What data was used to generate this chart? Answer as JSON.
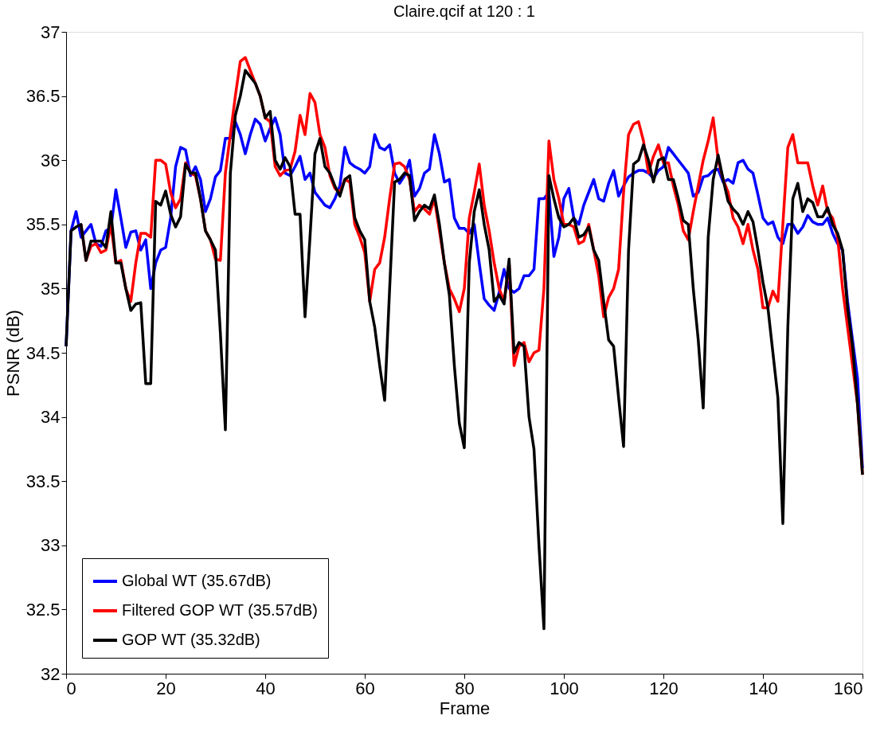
{
  "chart_data": {
    "type": "line",
    "title": "Claire.qcif at 120 : 1",
    "xlabel": "Frame",
    "ylabel": "PSNR (dB)",
    "x": [
      0,
      1,
      2,
      3,
      4,
      5,
      6,
      7,
      8,
      9,
      10,
      11,
      12,
      13,
      14,
      15,
      16,
      17,
      18,
      19,
      20,
      21,
      22,
      23,
      24,
      25,
      26,
      27,
      28,
      29,
      30,
      31,
      32,
      33,
      34,
      35,
      36,
      37,
      38,
      39,
      40,
      41,
      42,
      43,
      44,
      45,
      46,
      47,
      48,
      49,
      50,
      51,
      52,
      53,
      54,
      55,
      56,
      57,
      58,
      59,
      60,
      61,
      62,
      63,
      64,
      65,
      66,
      67,
      68,
      69,
      70,
      71,
      72,
      73,
      74,
      75,
      76,
      77,
      78,
      79,
      80,
      81,
      82,
      83,
      84,
      85,
      86,
      87,
      88,
      89,
      90,
      91,
      92,
      93,
      94,
      95,
      96,
      97,
      98,
      99,
      100,
      101,
      102,
      103,
      104,
      105,
      106,
      107,
      108,
      109,
      110,
      111,
      112,
      113,
      114,
      115,
      116,
      117,
      118,
      119,
      120,
      121,
      122,
      123,
      124,
      125,
      126,
      127,
      128,
      129,
      130,
      131,
      132,
      133,
      134,
      135,
      136,
      137,
      138,
      139,
      140,
      141,
      142,
      143,
      144,
      145,
      146,
      147,
      148,
      149,
      150,
      151,
      152,
      153,
      154,
      155,
      156,
      157,
      158,
      159,
      160
    ],
    "series": [
      {
        "name": "Global WT (35.67dB)",
        "color": "#0000ff",
        "values": [
          34.55,
          35.45,
          35.6,
          35.4,
          35.45,
          35.5,
          35.35,
          35.33,
          35.45,
          35.47,
          35.77,
          35.55,
          35.32,
          35.44,
          35.45,
          35.3,
          35.38,
          35.0,
          35.2,
          35.3,
          35.32,
          35.55,
          35.95,
          36.1,
          36.08,
          35.88,
          35.95,
          35.85,
          35.6,
          35.7,
          35.87,
          35.92,
          36.17,
          36.17,
          36.3,
          36.2,
          36.05,
          36.2,
          36.32,
          36.28,
          36.15,
          36.25,
          36.33,
          36.2,
          35.9,
          35.88,
          35.95,
          36.03,
          35.85,
          35.9,
          35.75,
          35.7,
          35.65,
          35.63,
          35.7,
          35.8,
          36.1,
          35.98,
          35.95,
          35.93,
          35.9,
          35.95,
          36.2,
          36.1,
          36.08,
          36.12,
          35.9,
          35.82,
          35.88,
          36.0,
          35.72,
          35.78,
          35.9,
          35.93,
          36.2,
          36.05,
          35.83,
          35.85,
          35.55,
          35.47,
          35.47,
          35.43,
          35.5,
          35.2,
          34.92,
          34.87,
          34.83,
          34.97,
          35.15,
          35.0,
          34.97,
          35.0,
          35.1,
          35.1,
          35.15,
          35.7,
          35.7,
          35.75,
          35.25,
          35.4,
          35.7,
          35.78,
          35.55,
          35.5,
          35.65,
          35.75,
          35.85,
          35.7,
          35.68,
          35.82,
          35.92,
          35.72,
          35.8,
          35.87,
          35.9,
          35.92,
          35.92,
          35.9,
          35.86,
          35.92,
          35.95,
          36.1,
          36.05,
          36.0,
          35.95,
          35.9,
          35.72,
          35.75,
          35.87,
          35.88,
          35.92,
          35.93,
          35.83,
          35.85,
          35.82,
          35.98,
          36.0,
          35.93,
          35.9,
          35.73,
          35.55,
          35.5,
          35.52,
          35.4,
          35.35,
          35.5,
          35.5,
          35.43,
          35.48,
          35.57,
          35.52,
          35.5,
          35.5,
          35.55,
          35.43,
          35.35,
          35.3,
          34.9,
          34.6,
          34.3,
          33.6
        ]
      },
      {
        "name": "Filtered GOP WT (35.57dB)",
        "color": "#ff0000",
        "values": [
          null,
          null,
          null,
          35.5,
          35.22,
          35.33,
          35.35,
          35.28,
          35.3,
          35.5,
          35.2,
          35.22,
          35.0,
          34.9,
          35.2,
          35.43,
          35.43,
          35.4,
          36.0,
          36.0,
          35.97,
          35.75,
          35.63,
          35.7,
          35.98,
          35.9,
          35.88,
          35.7,
          35.45,
          35.38,
          35.23,
          35.22,
          35.9,
          36.2,
          36.5,
          36.77,
          36.8,
          36.7,
          36.6,
          36.5,
          36.33,
          36.3,
          35.95,
          35.88,
          35.92,
          35.93,
          36.07,
          36.35,
          36.2,
          36.52,
          36.45,
          36.2,
          36.1,
          35.88,
          35.78,
          35.75,
          35.85,
          35.83,
          35.5,
          35.4,
          35.28,
          34.9,
          35.15,
          35.2,
          35.4,
          35.7,
          35.97,
          35.98,
          35.95,
          35.85,
          35.6,
          35.65,
          35.62,
          35.58,
          35.7,
          35.45,
          35.2,
          35.0,
          34.92,
          34.82,
          35.0,
          35.55,
          35.75,
          35.97,
          35.65,
          35.45,
          35.2,
          35.0,
          34.9,
          35.2,
          34.4,
          34.55,
          34.58,
          34.43,
          34.5,
          34.52,
          35.0,
          36.15,
          35.85,
          35.7,
          35.5,
          35.5,
          35.48,
          35.35,
          35.37,
          35.5,
          35.3,
          35.1,
          34.78,
          34.93,
          35.0,
          35.15,
          35.75,
          36.2,
          36.28,
          36.3,
          36.15,
          35.9,
          36.03,
          36.12,
          35.98,
          35.98,
          35.8,
          35.65,
          35.45,
          35.38,
          35.6,
          35.8,
          36.0,
          36.15,
          36.33,
          36.0,
          35.85,
          35.75,
          35.55,
          35.48,
          35.35,
          35.5,
          35.3,
          35.15,
          34.85,
          34.85,
          34.98,
          34.9,
          35.5,
          36.1,
          36.2,
          35.98,
          35.98,
          35.98,
          35.8,
          35.65,
          35.8,
          35.6,
          35.55,
          35.4,
          35.0,
          34.7,
          34.4,
          34.1,
          33.55
        ]
      },
      {
        "name": "GOP WT (35.32dB)",
        "color": "#000000",
        "values": [
          34.55,
          35.45,
          35.48,
          35.5,
          35.22,
          35.37,
          35.37,
          35.37,
          35.32,
          35.6,
          35.2,
          35.2,
          35.0,
          34.83,
          34.88,
          34.89,
          34.26,
          34.26,
          35.68,
          35.65,
          35.76,
          35.58,
          35.48,
          35.56,
          35.97,
          35.9,
          35.9,
          35.7,
          35.45,
          35.38,
          35.3,
          34.65,
          33.9,
          35.9,
          36.35,
          36.5,
          36.7,
          36.65,
          36.6,
          36.5,
          36.33,
          36.38,
          36.0,
          35.93,
          36.02,
          35.95,
          35.58,
          35.58,
          34.78,
          35.4,
          36.05,
          36.17,
          35.95,
          35.9,
          35.8,
          35.72,
          35.85,
          35.88,
          35.55,
          35.45,
          35.38,
          34.9,
          34.7,
          34.4,
          34.13,
          35.0,
          35.83,
          35.85,
          35.9,
          35.88,
          35.53,
          35.6,
          35.65,
          35.62,
          35.73,
          35.5,
          35.2,
          34.95,
          34.4,
          33.95,
          33.76,
          35.2,
          35.6,
          35.77,
          35.5,
          35.3,
          34.9,
          34.95,
          34.88,
          35.23,
          34.5,
          34.58,
          34.55,
          34.0,
          33.75,
          33.0,
          32.35,
          35.88,
          35.7,
          35.55,
          35.48,
          35.5,
          35.55,
          35.4,
          35.42,
          35.48,
          35.3,
          35.22,
          34.9,
          34.6,
          34.55,
          34.15,
          33.77,
          35.3,
          35.97,
          36.0,
          36.12,
          36.0,
          35.83,
          36.0,
          36.02,
          35.85,
          35.85,
          35.7,
          35.53,
          35.5,
          35.0,
          34.6,
          34.07,
          35.4,
          35.85,
          36.04,
          35.85,
          35.68,
          35.62,
          35.58,
          35.5,
          35.6,
          35.52,
          35.3,
          35.05,
          34.85,
          34.5,
          34.15,
          33.17,
          34.7,
          35.7,
          35.82,
          35.6,
          35.7,
          35.67,
          35.56,
          35.56,
          35.63,
          35.5,
          35.43,
          35.3,
          34.85,
          34.55,
          34.1,
          33.55
        ]
      }
    ],
    "xlim": [
      0,
      160
    ],
    "xticks": [
      0,
      20,
      40,
      60,
      80,
      100,
      120,
      140,
      160
    ],
    "ylim": [
      32,
      37
    ],
    "yticks": [
      32,
      32.5,
      33,
      33.5,
      34,
      34.5,
      35,
      35.5,
      36,
      36.5,
      37
    ],
    "grid": false,
    "legend": "bottom left",
    "line_style": "solid"
  }
}
